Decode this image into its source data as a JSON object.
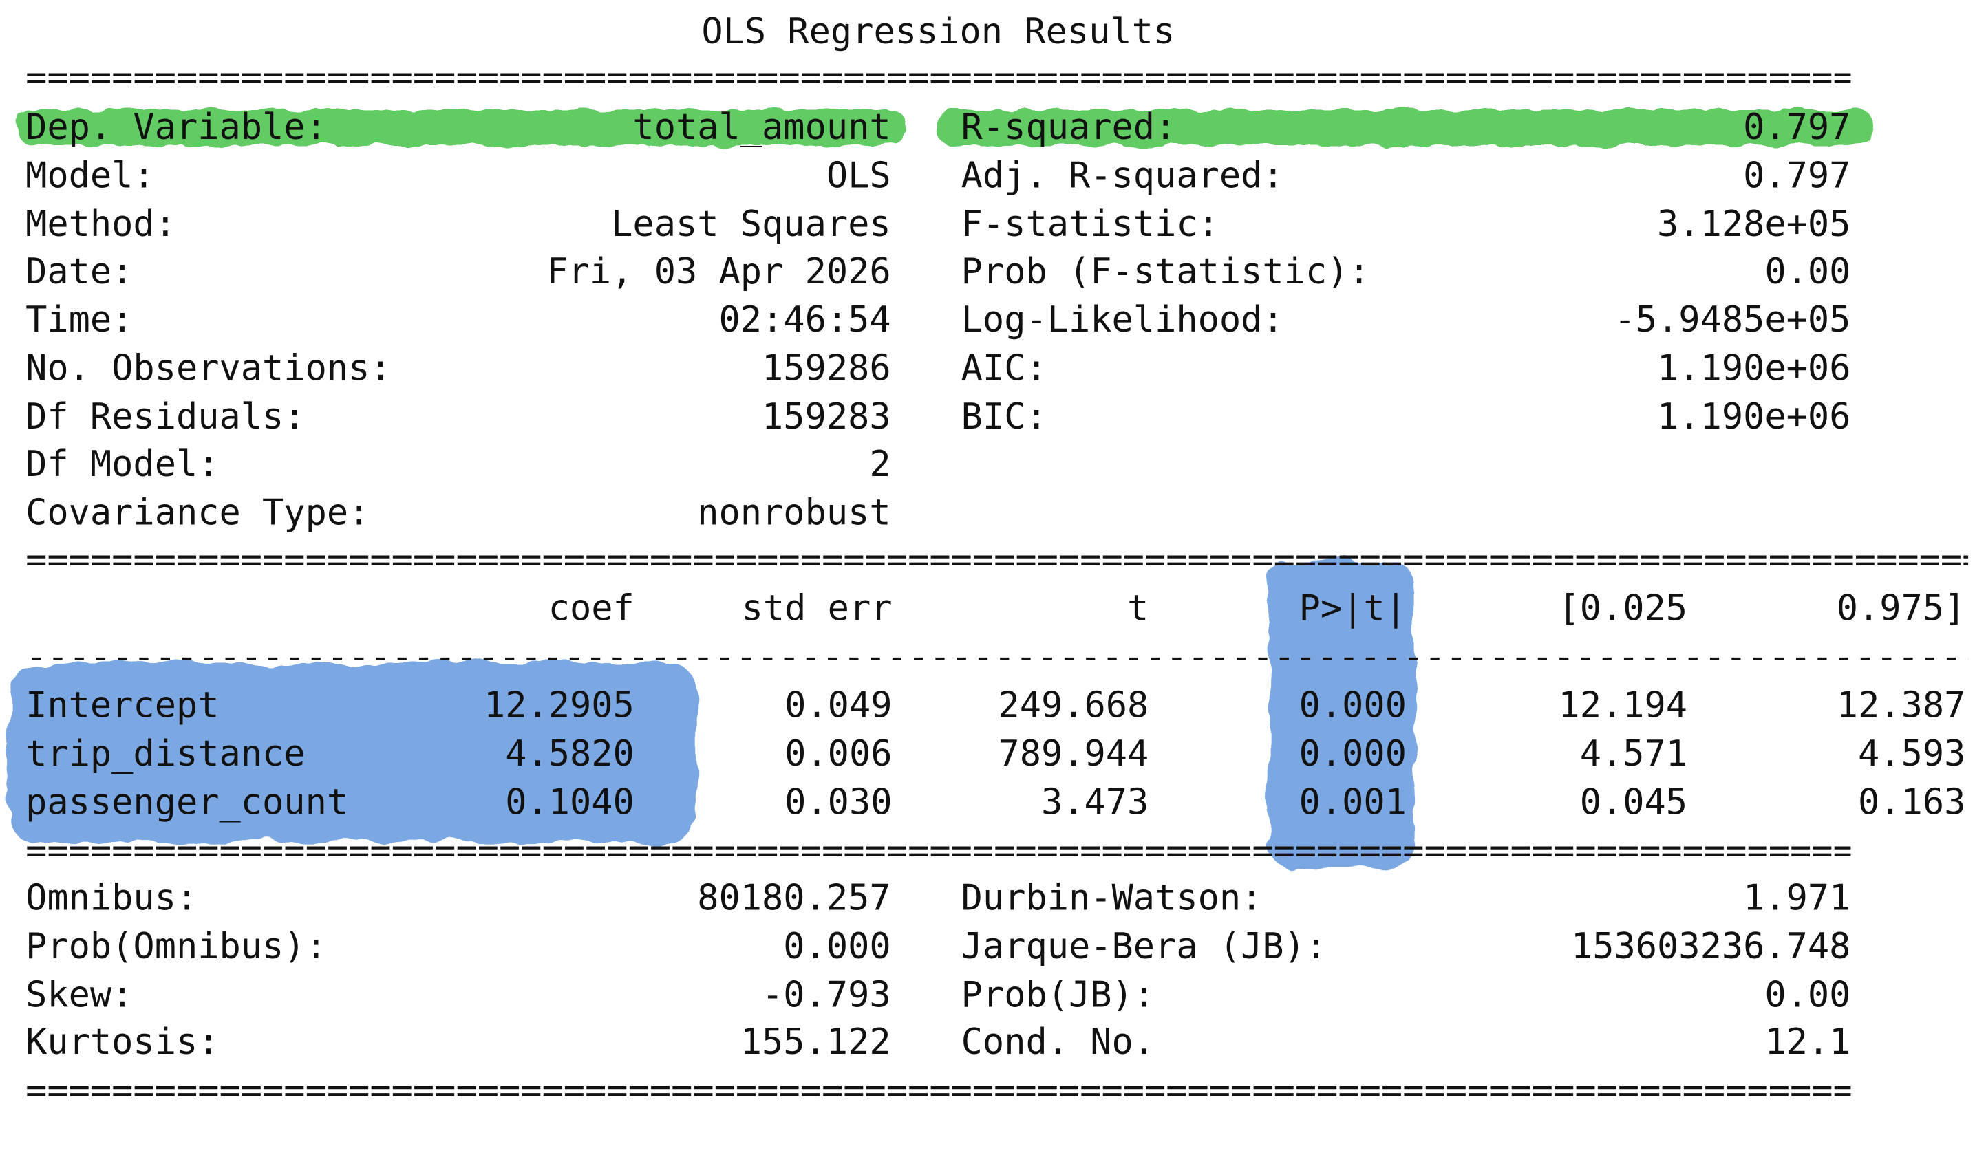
{
  "title": "OLS Regression Results",
  "rule_double": "==================================================================================================",
  "rule_single": "--------------------------------------------------------------------------------------------------",
  "highlight_colors": {
    "green": "#46c24a",
    "blue": "#4a86d8"
  },
  "top_left": [
    {
      "label": "Dep. Variable:",
      "value": "total_amount"
    },
    {
      "label": "Model:",
      "value": "OLS"
    },
    {
      "label": "Method:",
      "value": "Least Squares"
    },
    {
      "label": "Date:",
      "value": "Fri, 03 Apr 2026"
    },
    {
      "label": "Time:",
      "value": "02:46:54"
    },
    {
      "label": "No. Observations:",
      "value": "159286"
    },
    {
      "label": "Df Residuals:",
      "value": "159283"
    },
    {
      "label": "Df Model:",
      "value": "2"
    },
    {
      "label": "Covariance Type:",
      "value": "nonrobust"
    }
  ],
  "top_right": [
    {
      "label": "R-squared:",
      "value": "0.797"
    },
    {
      "label": "Adj. R-squared:",
      "value": "0.797"
    },
    {
      "label": "F-statistic:",
      "value": "3.128e+05"
    },
    {
      "label": "Prob (F-statistic):",
      "value": "0.00"
    },
    {
      "label": "Log-Likelihood:",
      "value": "-5.9485e+05"
    },
    {
      "label": "AIC:",
      "value": "1.190e+06"
    },
    {
      "label": "BIC:",
      "value": "1.190e+06"
    }
  ],
  "coef_headers": [
    "coef",
    "std err",
    "t",
    "P>|t|",
    "[0.025",
    "0.975]"
  ],
  "coef_rows": [
    {
      "name": "Intercept",
      "cells": [
        "12.2905",
        "0.049",
        "249.668",
        "0.000",
        "12.194",
        "12.387"
      ]
    },
    {
      "name": "trip_distance",
      "cells": [
        "4.5820",
        "0.006",
        "789.944",
        "0.000",
        "4.571",
        "4.593"
      ]
    },
    {
      "name": "passenger_count",
      "cells": [
        "0.1040",
        "0.030",
        "3.473",
        "0.001",
        "0.045",
        "0.163"
      ]
    }
  ],
  "bottom_left": [
    {
      "label": "Omnibus:",
      "value": "80180.257"
    },
    {
      "label": "Prob(Omnibus):",
      "value": "0.000"
    },
    {
      "label": "Skew:",
      "value": "-0.793"
    },
    {
      "label": "Kurtosis:",
      "value": "155.122"
    }
  ],
  "bottom_right": [
    {
      "label": "Durbin-Watson:",
      "value": "1.971"
    },
    {
      "label": "Jarque-Bera (JB):",
      "value": "153603236.748"
    },
    {
      "label": "Prob(JB):",
      "value": "0.00"
    },
    {
      "label": "Cond. No.",
      "value": "12.1"
    }
  ]
}
